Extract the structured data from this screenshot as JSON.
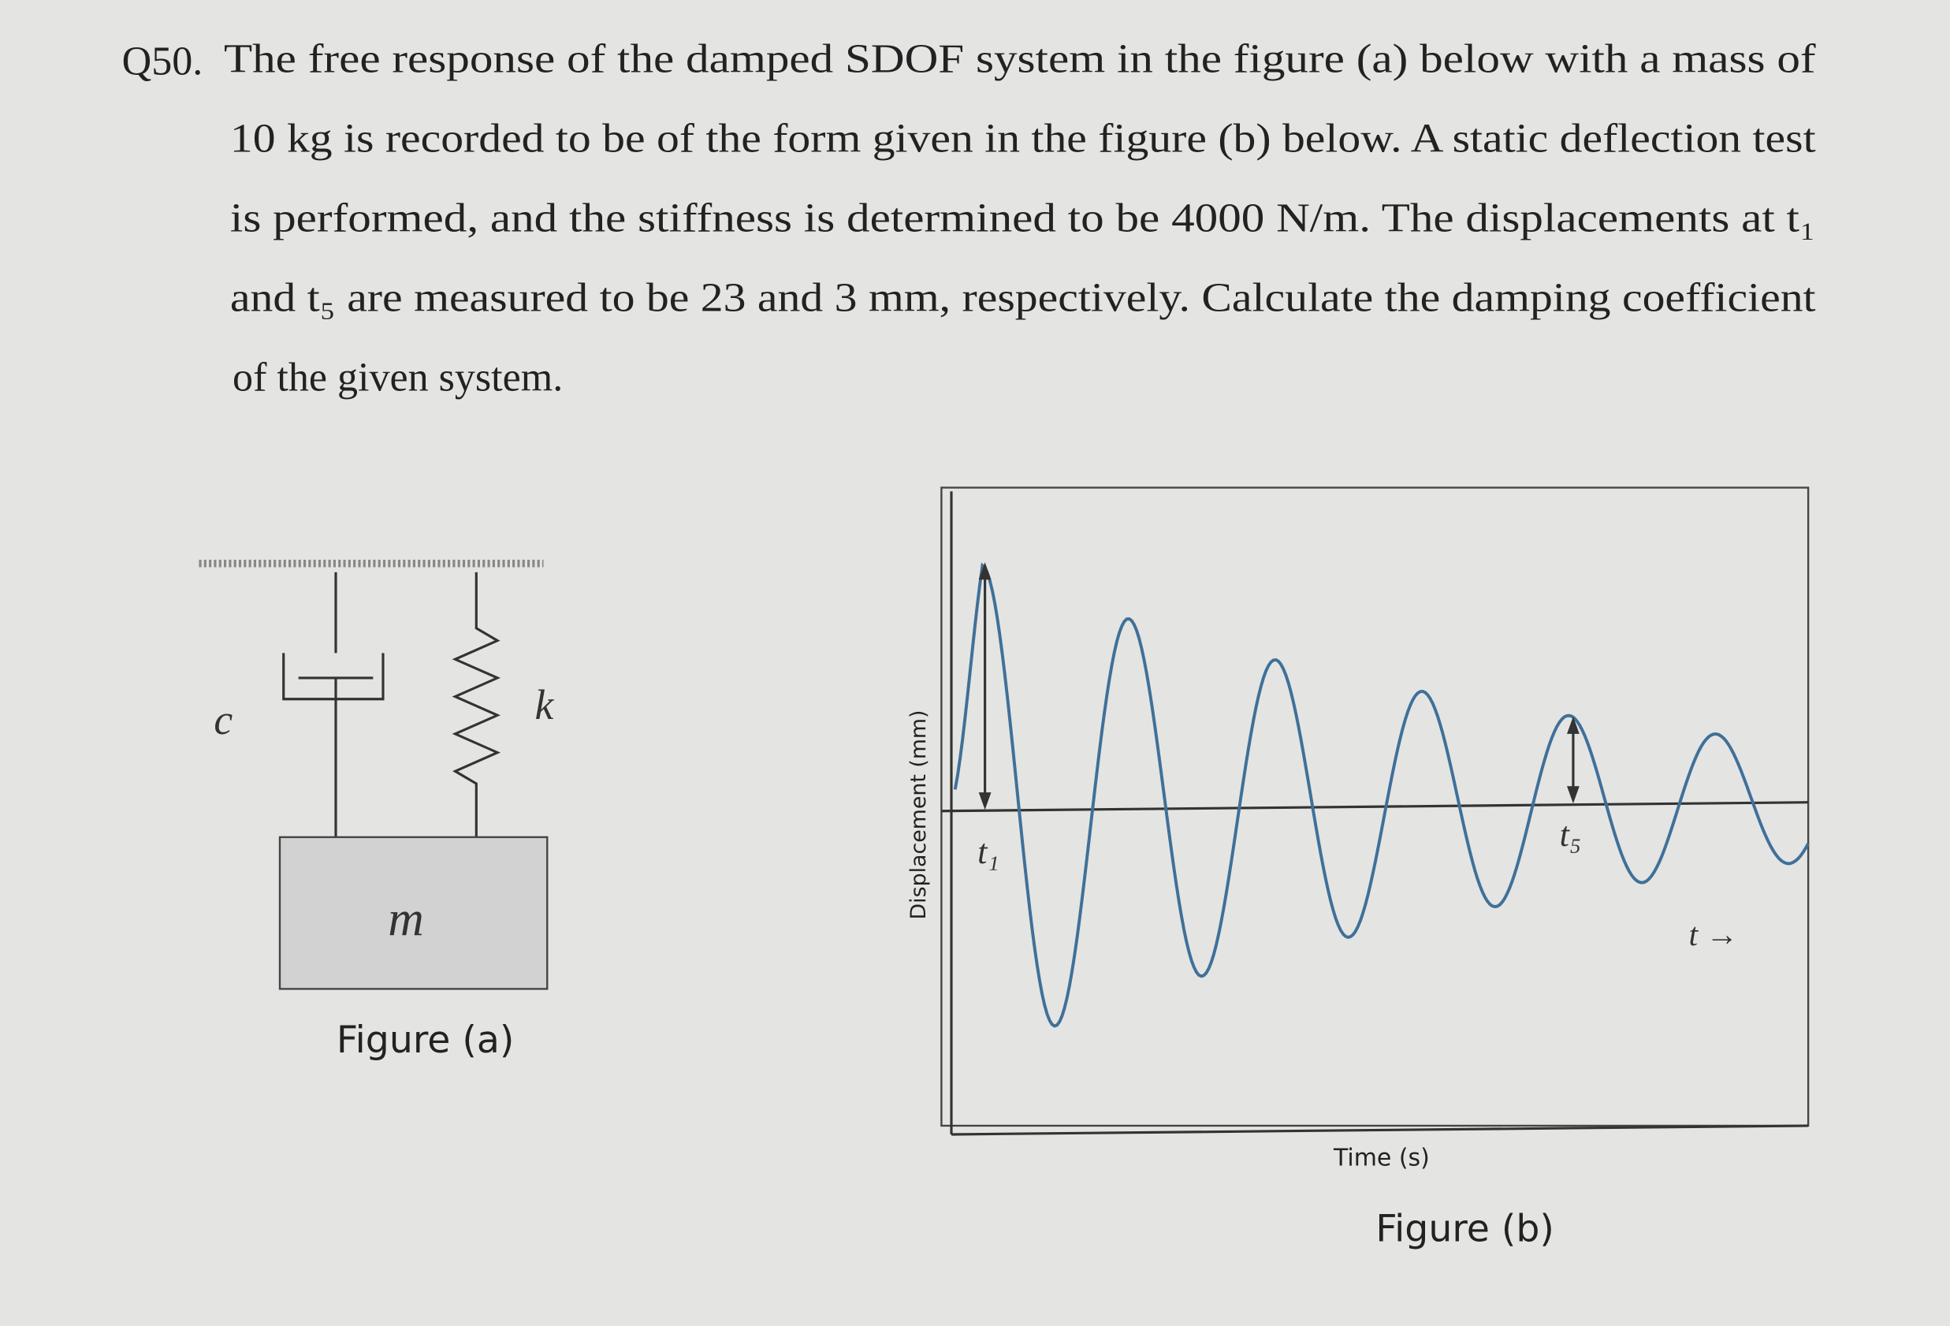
{
  "question": {
    "number": "Q50.",
    "lines": [
      "The free response of the damped SDOF system in the figure (a) below with a mass of",
      "10 kg is recorded to be of the form given in the figure (b) below. A static deflection test",
      "is performed, and the stiffness is determined to be 4000 N/m. The displacements at t₁",
      "and t₅ are measured to be 23 and 3 mm, respectively. Calculate the damping coefficient",
      "of the given system."
    ]
  },
  "figure_a": {
    "damper_label": "c",
    "spring_label": "k",
    "mass_label": "m",
    "caption": "Figure (a)"
  },
  "figure_b": {
    "y_label": "Displacement (mm)",
    "x_label": "Time (s)",
    "t1_label": "t₁",
    "t5_label": "t₅",
    "time_arrow": "t →",
    "caption": "Figure (b)"
  }
}
